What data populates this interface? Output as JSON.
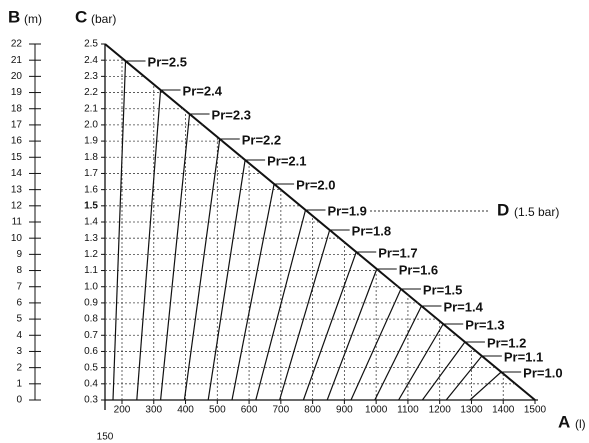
{
  "axis_b": {
    "letter": "B",
    "unit": "(m)",
    "ticks": [
      "0",
      "1",
      "2",
      "3",
      "4",
      "5",
      "6",
      "7",
      "8",
      "9",
      "10",
      "11",
      "12",
      "13",
      "14",
      "15",
      "16",
      "17",
      "18",
      "19",
      "20",
      "21",
      "22"
    ]
  },
  "axis_c": {
    "letter": "C",
    "unit": "(bar)",
    "ticks": [
      "0.3",
      "0.4",
      "0.5",
      "0.6",
      "0.7",
      "0.8",
      "0.9",
      "1.0",
      "1.1",
      "1.2",
      "1.3",
      "1.4",
      "1.5",
      "1.6",
      "1.7",
      "1.8",
      "1.9",
      "2.0",
      "2.1",
      "2.2",
      "2.3",
      "2.4",
      "2.5"
    ]
  },
  "axis_a": {
    "letter": "A",
    "unit": "(l)",
    "first_tick": "150",
    "ticks": [
      "200",
      "300",
      "400",
      "500",
      "600",
      "700",
      "800",
      "900",
      "1000",
      "1100",
      "1200",
      "1300",
      "1400",
      "1500"
    ]
  },
  "pr_labels": [
    "Pr=2.5",
    "Pr=2.4",
    "Pr=2.3",
    "Pr=2.2",
    "Pr=2.1",
    "Pr=2.0",
    "Pr=1.9",
    "Pr=1.8",
    "Pr=1.7",
    "Pr=1.6",
    "Pr=1.5",
    "Pr=1.4",
    "Pr=1.3",
    "Pr=1.2",
    "Pr=1.1",
    "Pr=1.0"
  ],
  "marker_d": {
    "letter": "D",
    "unit": "(1.5 bar)"
  }
}
